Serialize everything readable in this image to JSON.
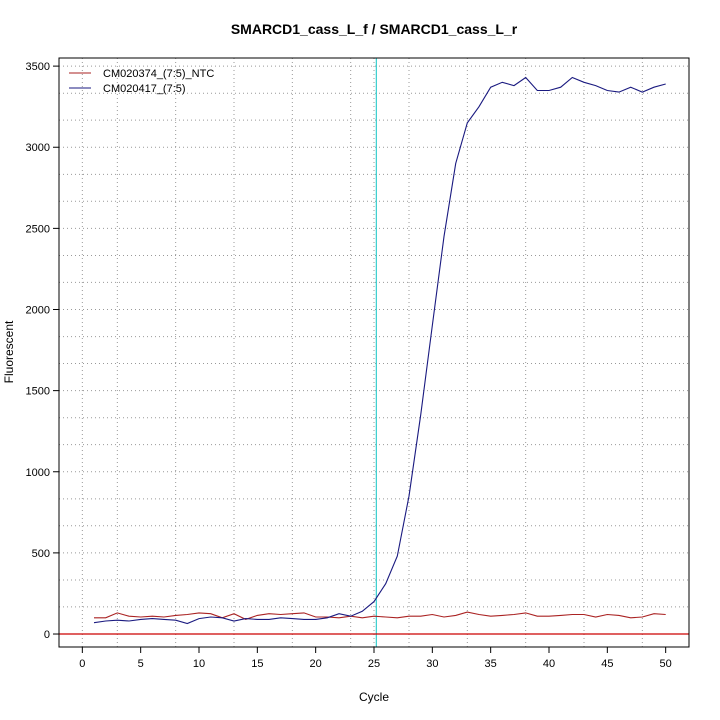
{
  "chart_data": {
    "type": "line",
    "title": "SMARCD1_cass_L_f / SMARCD1_cass_L_r",
    "xlabel": "Cycle",
    "ylabel": "Fluorescent",
    "xlim": [
      -2,
      52
    ],
    "ylim": [
      -80,
      3550
    ],
    "x_ticks": [
      0,
      5,
      10,
      15,
      20,
      25,
      30,
      35,
      40,
      45,
      50
    ],
    "y_ticks": [
      0,
      500,
      1000,
      1500,
      2000,
      2500,
      3000,
      3500
    ],
    "x_grid": [
      0,
      3,
      8,
      13,
      18,
      23,
      25,
      28,
      33,
      38,
      43,
      48
    ],
    "y_grid": [
      0,
      167,
      333,
      500,
      667,
      833,
      1000,
      1167,
      1333,
      1500,
      1667,
      1833,
      2000,
      2167,
      2333,
      2500,
      2667,
      2833,
      3000,
      3167,
      3333,
      3500
    ],
    "grid": true,
    "legend_position": "top-left",
    "threshold": {
      "y": 0,
      "color": "#cc0000"
    },
    "marker_line": {
      "x": 25.2,
      "color": "#33cccc"
    },
    "x": [
      1,
      2,
      3,
      4,
      5,
      6,
      7,
      8,
      9,
      10,
      11,
      12,
      13,
      14,
      15,
      16,
      17,
      18,
      19,
      20,
      21,
      22,
      23,
      24,
      25,
      26,
      27,
      28,
      29,
      30,
      31,
      32,
      33,
      34,
      35,
      36,
      37,
      38,
      39,
      40,
      41,
      42,
      43,
      44,
      45,
      46,
      47,
      48,
      49,
      50
    ],
    "series": [
      {
        "name": "CM020374_(7:5)_NTC",
        "color": "#aa2222",
        "values": [
          100,
          100,
          130,
          110,
          105,
          110,
          105,
          115,
          120,
          130,
          125,
          100,
          125,
          90,
          115,
          125,
          120,
          125,
          130,
          105,
          105,
          100,
          110,
          100,
          110,
          105,
          100,
          110,
          110,
          120,
          105,
          115,
          135,
          120,
          110,
          115,
          120,
          130,
          110,
          110,
          115,
          120,
          120,
          105,
          120,
          115,
          100,
          105,
          125,
          120
        ]
      },
      {
        "name": "CM020417_(7:5)",
        "color": "#1a1a80",
        "values": [
          70,
          80,
          85,
          80,
          90,
          95,
          90,
          85,
          65,
          95,
          105,
          100,
          80,
          95,
          90,
          90,
          100,
          95,
          90,
          90,
          100,
          125,
          110,
          140,
          200,
          310,
          480,
          850,
          1350,
          1900,
          2450,
          2900,
          3150,
          3250,
          3370,
          3400,
          3380,
          3430,
          3350,
          3350,
          3370,
          3430,
          3400,
          3380,
          3350,
          3340,
          3370,
          3340,
          3370,
          3390
        ]
      }
    ]
  }
}
